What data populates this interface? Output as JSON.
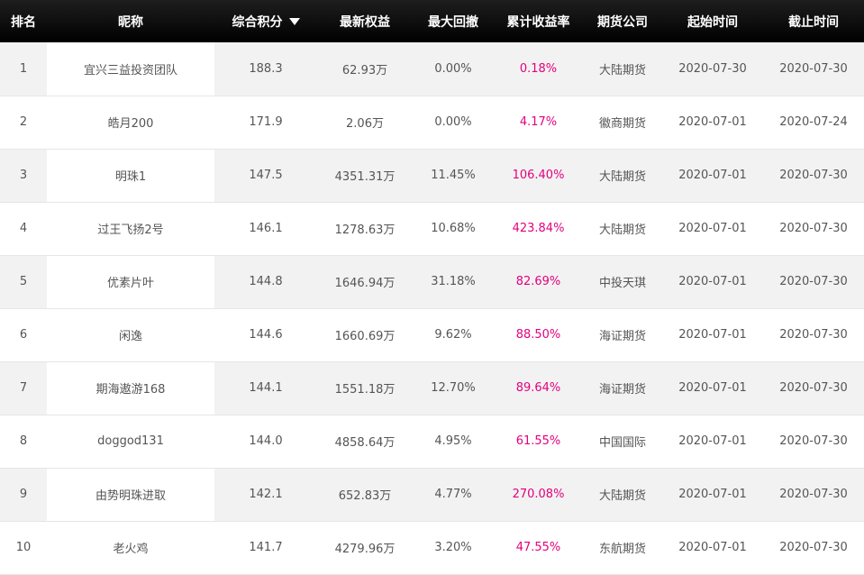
{
  "columns": {
    "rank": "排名",
    "nickname": "昵称",
    "score": "综合积分",
    "equity": "最新权益",
    "drawdown": "最大回撤",
    "return_rate": "累计收益率",
    "company": "期货公司",
    "start": "起始时间",
    "end": "截止时间"
  },
  "sort": {
    "column": "score",
    "direction": "desc",
    "icon": "caret-down-icon"
  },
  "accent_color": "#e4007f",
  "rows": [
    {
      "rank": "1",
      "nickname": "宜兴三益投资团队",
      "score": "188.3",
      "equity": "62.93万",
      "drawdown": "0.00%",
      "return_rate": "0.18%",
      "company": "大陆期货",
      "start": "2020-07-30",
      "end": "2020-07-30"
    },
    {
      "rank": "2",
      "nickname": "皓月200",
      "score": "171.9",
      "equity": "2.06万",
      "drawdown": "0.00%",
      "return_rate": "4.17%",
      "company": "徽商期货",
      "start": "2020-07-01",
      "end": "2020-07-24"
    },
    {
      "rank": "3",
      "nickname": "明珠1",
      "score": "147.5",
      "equity": "4351.31万",
      "drawdown": "11.45%",
      "return_rate": "106.40%",
      "company": "大陆期货",
      "start": "2020-07-01",
      "end": "2020-07-30"
    },
    {
      "rank": "4",
      "nickname": "过王飞扬2号",
      "score": "146.1",
      "equity": "1278.63万",
      "drawdown": "10.68%",
      "return_rate": "423.84%",
      "company": "大陆期货",
      "start": "2020-07-01",
      "end": "2020-07-30"
    },
    {
      "rank": "5",
      "nickname": "优素片叶",
      "score": "144.8",
      "equity": "1646.94万",
      "drawdown": "31.18%",
      "return_rate": "82.69%",
      "company": "中投天琪",
      "start": "2020-07-01",
      "end": "2020-07-30"
    },
    {
      "rank": "6",
      "nickname": "闲逸",
      "score": "144.6",
      "equity": "1660.69万",
      "drawdown": "9.62%",
      "return_rate": "88.50%",
      "company": "海证期货",
      "start": "2020-07-01",
      "end": "2020-07-30"
    },
    {
      "rank": "7",
      "nickname": "期海遨游168",
      "score": "144.1",
      "equity": "1551.18万",
      "drawdown": "12.70%",
      "return_rate": "89.64%",
      "company": "海证期货",
      "start": "2020-07-01",
      "end": "2020-07-30"
    },
    {
      "rank": "8",
      "nickname": "doggod131",
      "score": "144.0",
      "equity": "4858.64万",
      "drawdown": "4.95%",
      "return_rate": "61.55%",
      "company": "中国国际",
      "start": "2020-07-01",
      "end": "2020-07-30"
    },
    {
      "rank": "9",
      "nickname": "由势明珠进取",
      "score": "142.1",
      "equity": "652.83万",
      "drawdown": "4.77%",
      "return_rate": "270.08%",
      "company": "大陆期货",
      "start": "2020-07-01",
      "end": "2020-07-30"
    },
    {
      "rank": "10",
      "nickname": "老火鸡",
      "score": "141.7",
      "equity": "4279.96万",
      "drawdown": "3.20%",
      "return_rate": "47.55%",
      "company": "东航期货",
      "start": "2020-07-01",
      "end": "2020-07-30"
    }
  ]
}
